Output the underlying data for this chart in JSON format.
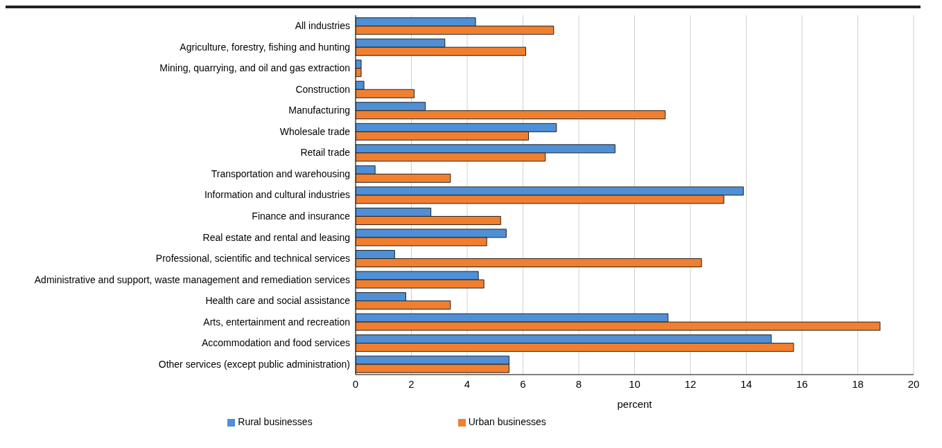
{
  "chart_data": {
    "type": "bar",
    "orientation": "horizontal",
    "xlabel": "percent",
    "categories": [
      "All industries",
      "Agriculture, forestry, fishing and hunting",
      "Mining, quarrying, and oil and gas extraction",
      "Construction",
      "Manufacturing",
      "Wholesale trade",
      "Retail trade",
      "Transportation and warehousing",
      "Information and cultural industries",
      "Finance and insurance",
      "Real estate and rental and leasing",
      "Professional, scientific and technical services",
      "Administrative and support, waste management and remediation services",
      "Health care and social assistance",
      "Arts, entertainment and recreation",
      "Accommodation and food services",
      "Other services (except public administration)"
    ],
    "series": [
      {
        "name": "Rural businesses",
        "color": "#4f8fd6",
        "values": [
          4.3,
          3.2,
          0.2,
          0.3,
          2.5,
          7.2,
          9.3,
          0.7,
          13.9,
          2.7,
          5.4,
          1.4,
          4.4,
          1.8,
          11.2,
          14.9,
          5.5
        ]
      },
      {
        "name": "Urban businesses",
        "color": "#f07f2f",
        "values": [
          7.1,
          6.1,
          0.2,
          2.1,
          11.1,
          6.2,
          6.8,
          3.4,
          13.2,
          5.2,
          4.7,
          12.4,
          4.6,
          3.4,
          18.8,
          15.7,
          5.5
        ]
      }
    ],
    "xlim": [
      0,
      20
    ],
    "xticks": [
      0,
      2,
      4,
      6,
      8,
      10,
      12,
      14,
      16,
      18,
      20
    ],
    "grid": "x",
    "legend": "bottom"
  }
}
